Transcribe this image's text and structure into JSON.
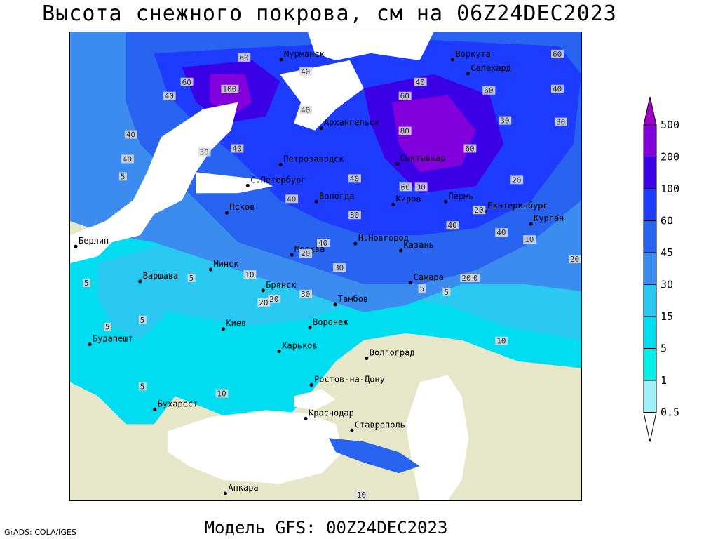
{
  "title": "Высота снежного покрова, см на 06Z24DEC2023",
  "footer": "Модель GFS: 00Z24DEC2023",
  "credit": "GrADS: COLA/IGES",
  "legend": {
    "levels": [
      "500",
      "200",
      "100",
      "60",
      "45",
      "30",
      "15",
      "5",
      "1",
      "0.5"
    ],
    "colors": [
      "#a000c8",
      "#8200dc",
      "#3c00e6",
      "#1e3cff",
      "#2864f0",
      "#3c8cf0",
      "#28c8f0",
      "#00dcf0",
      "#00f0e8",
      "#a0f0f8"
    ]
  },
  "cities": [
    {
      "name": "Мурманск"
    },
    {
      "name": "Воркута"
    },
    {
      "name": "Салехард"
    },
    {
      "name": "Архангельск"
    },
    {
      "name": "Петрозаводск"
    },
    {
      "name": "Сыктывкар"
    },
    {
      "name": "С.Петербург"
    },
    {
      "name": "Вологда"
    },
    {
      "name": "Псков"
    },
    {
      "name": "Киров"
    },
    {
      "name": "Пермь"
    },
    {
      "name": "Екатеринбург"
    },
    {
      "name": "Курган"
    },
    {
      "name": "Н.Новгород"
    },
    {
      "name": "Москва"
    },
    {
      "name": "Казань"
    },
    {
      "name": "Берлин"
    },
    {
      "name": "Минск"
    },
    {
      "name": "Варшава"
    },
    {
      "name": "Брянск"
    },
    {
      "name": "Тамбов"
    },
    {
      "name": "Самара"
    },
    {
      "name": "Киев"
    },
    {
      "name": "Воронеж"
    },
    {
      "name": "Будапешт"
    },
    {
      "name": "Харьков"
    },
    {
      "name": "Волгоград"
    },
    {
      "name": "Ростов-на-Дону"
    },
    {
      "name": "Бухарест"
    },
    {
      "name": "Краснодар"
    },
    {
      "name": "Ставрополь"
    },
    {
      "name": "Анкара"
    }
  ],
  "contour_labels": [
    "60",
    "60",
    "40",
    "40",
    "100",
    "60",
    "40",
    "60",
    "60",
    "40",
    "40",
    "40",
    "30",
    "40",
    "80",
    "30",
    "60",
    "40",
    "30",
    "60",
    "30",
    "40",
    "30",
    "20",
    "30",
    "20",
    "30",
    "40",
    "40",
    "5",
    "40",
    "40",
    "20",
    "5",
    "10",
    "20",
    "10",
    "20",
    "5",
    "20",
    "5",
    "5",
    "10",
    "5",
    "10",
    "5",
    "10",
    "5",
    "20",
    "10"
  ]
}
